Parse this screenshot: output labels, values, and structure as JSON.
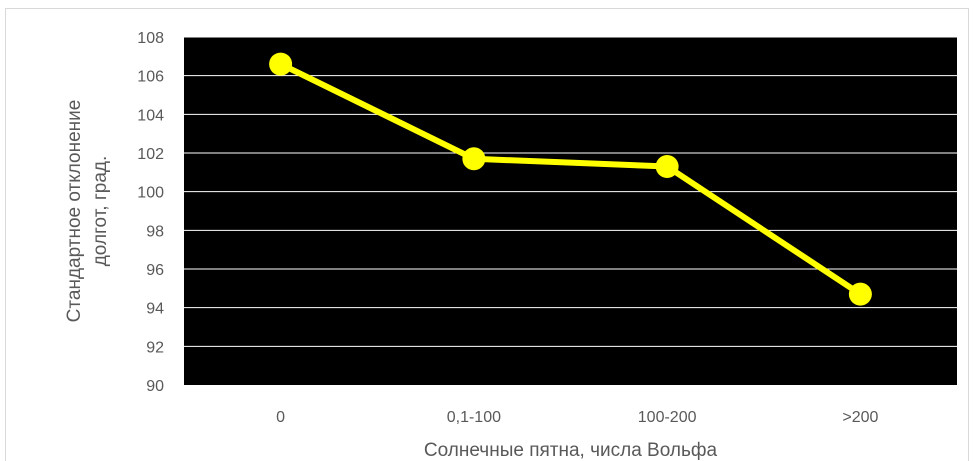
{
  "chart_data": {
    "type": "line",
    "categories": [
      "0",
      "0,1-100",
      "100-200",
      ">200"
    ],
    "series": [
      {
        "values": [
          106.6,
          101.7,
          101.3,
          94.7
        ]
      }
    ],
    "xlabel": "Солнечные пятна, числа Вольфа",
    "ylabel_lines": [
      "Стандартное отклонение",
      "долгот, град."
    ],
    "ylim": [
      90,
      108
    ],
    "yticks": [
      90,
      92,
      94,
      96,
      98,
      100,
      102,
      104,
      106,
      108
    ],
    "grid": true,
    "legend": "none",
    "colors": {
      "plot_background": "#000000",
      "line": "#ffff00",
      "gridline": "#ffffff",
      "text": "#595959"
    }
  }
}
